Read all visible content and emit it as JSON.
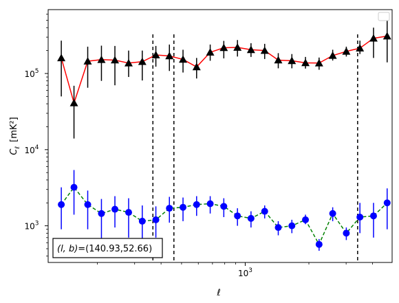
{
  "chart_data": {
    "type": "scatter",
    "title": "",
    "xlabel": "ℓ",
    "ylabel_main": "C",
    "ylabel_sub": "ℓ",
    "ylabel_unit": "[mK²]",
    "xscale": "log",
    "yscale": "log",
    "xlim": [
      117,
      4950
    ],
    "ylim": [
      330,
      690000
    ],
    "x_ticks": [
      {
        "value": 1000,
        "label": "10",
        "exp": "3"
      }
    ],
    "y_ticks": [
      {
        "value": 1000,
        "label": "10",
        "exp": "3"
      },
      {
        "value": 10000,
        "label": "10",
        "exp": "4"
      },
      {
        "value": 100000,
        "label": "10",
        "exp": "5"
      }
    ],
    "legend": {
      "placement": "top-right",
      "entries": []
    },
    "annotation": {
      "prefix": "(l, b)",
      "value": "=(140.93,52.66)"
    },
    "vlines": [
      366,
      460,
      3400
    ],
    "colors": {
      "red": "#ff0000",
      "green": "#008000",
      "blue": "#0000ff",
      "black": "#000000"
    },
    "x": [
      135,
      155,
      180,
      209,
      242,
      281,
      326,
      378,
      438,
      508,
      589,
      683,
      792,
      919,
      1065,
      1236,
      1433,
      1662,
      1927,
      2235,
      2592,
      3006,
      3486,
      4043,
      4689
    ],
    "series": [
      {
        "color": "red",
        "marker": "triangle",
        "values": [
          160000,
          41000,
          145000,
          152000,
          150000,
          137000,
          143000,
          175000,
          170000,
          153000,
          122000,
          190000,
          218000,
          220000,
          205000,
          200000,
          150000,
          147000,
          138000,
          137000,
          172000,
          195000,
          215000,
          290000,
          310000
        ],
        "err_low": [
          110000,
          27000,
          80000,
          72000,
          80000,
          47000,
          62000,
          52000,
          62000,
          50000,
          36000,
          43000,
          60000,
          53000,
          40000,
          45000,
          33000,
          30000,
          22000,
          25000,
          24000,
          28000,
          35000,
          130000,
          170000
        ],
        "err_high": [
          110000,
          28000,
          80000,
          80000,
          80000,
          63000,
          57000,
          55000,
          70000,
          52000,
          38000,
          50000,
          50000,
          55000,
          45000,
          45000,
          35000,
          33000,
          27000,
          25000,
          33000,
          30000,
          55000,
          110000,
          190000
        ]
      },
      {
        "color": "green",
        "marker": "circle",
        "values": [
          1900,
          3200,
          1900,
          1450,
          1650,
          1500,
          1150,
          1200,
          1700,
          1750,
          1900,
          1950,
          1800,
          1350,
          1250,
          1550,
          950,
          1000,
          1200,
          570,
          1450,
          800,
          1300,
          1350,
          2000
        ],
        "err_low": [
          1000,
          1800,
          1000,
          800,
          700,
          800,
          600,
          500,
          600,
          600,
          550,
          500,
          500,
          350,
          300,
          300,
          200,
          200,
          150,
          100,
          300,
          150,
          500,
          650,
          1100
        ],
        "err_high": [
          1300,
          2200,
          1000,
          800,
          800,
          800,
          700,
          600,
          700,
          600,
          550,
          500,
          500,
          350,
          300,
          300,
          200,
          200,
          200,
          100,
          300,
          150,
          700,
          650,
          1100
        ]
      }
    ]
  }
}
